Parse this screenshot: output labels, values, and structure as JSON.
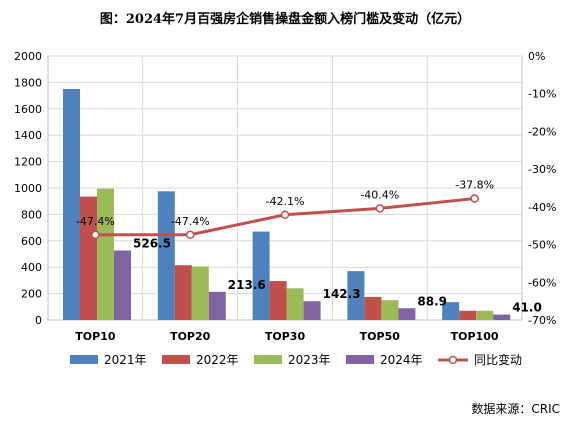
{
  "chart_data": {
    "type": "bar",
    "title": "图：2024年7月百强房企销售操盘金额入榜门槛及变动（亿元）",
    "categories": [
      "TOP10",
      "TOP20",
      "TOP30",
      "TOP50",
      "TOP100"
    ],
    "series": [
      {
        "name": "2021年",
        "type": "bar",
        "axis": "left",
        "color": "#4f81bd",
        "values": [
          1750,
          975,
          670,
          370,
          135
        ]
      },
      {
        "name": "2022年",
        "type": "bar",
        "axis": "left",
        "color": "#c0504d",
        "values": [
          935,
          415,
          295,
          175,
          70
        ]
      },
      {
        "name": "2023年",
        "type": "bar",
        "axis": "left",
        "color": "#9bbb59",
        "values": [
          995,
          405,
          240,
          150,
          70
        ]
      },
      {
        "name": "2024年",
        "type": "bar",
        "axis": "left",
        "color": "#8064a2",
        "values": [
          526.5,
          213.6,
          142.3,
          88.9,
          41.0
        ]
      },
      {
        "name": "同比变动",
        "type": "line",
        "axis": "right",
        "color": "#c0504d",
        "values": [
          -47.4,
          -47.4,
          -42.1,
          -40.4,
          -37.8
        ]
      }
    ],
    "bar_labels": [
      "526.5",
      "213.6",
      "142.3",
      "88.9",
      "41.0"
    ],
    "line_labels": [
      "-47.4%",
      "-47.4%",
      "-42.1%",
      "-40.4%",
      "-37.8%"
    ],
    "ylim": [
      0,
      2000
    ],
    "y_ticks": [
      "0",
      "200",
      "400",
      "600",
      "800",
      "1000",
      "1200",
      "1400",
      "1600",
      "1800",
      "2000"
    ],
    "y2lim": [
      -70,
      0
    ],
    "y2_ticks": [
      "0%",
      "-10%",
      "-20%",
      "-30%",
      "-40%",
      "-50%",
      "-60%",
      "-70%"
    ],
    "legend_position": "bottom",
    "grid": true,
    "source": "数据来源：CRIC"
  }
}
